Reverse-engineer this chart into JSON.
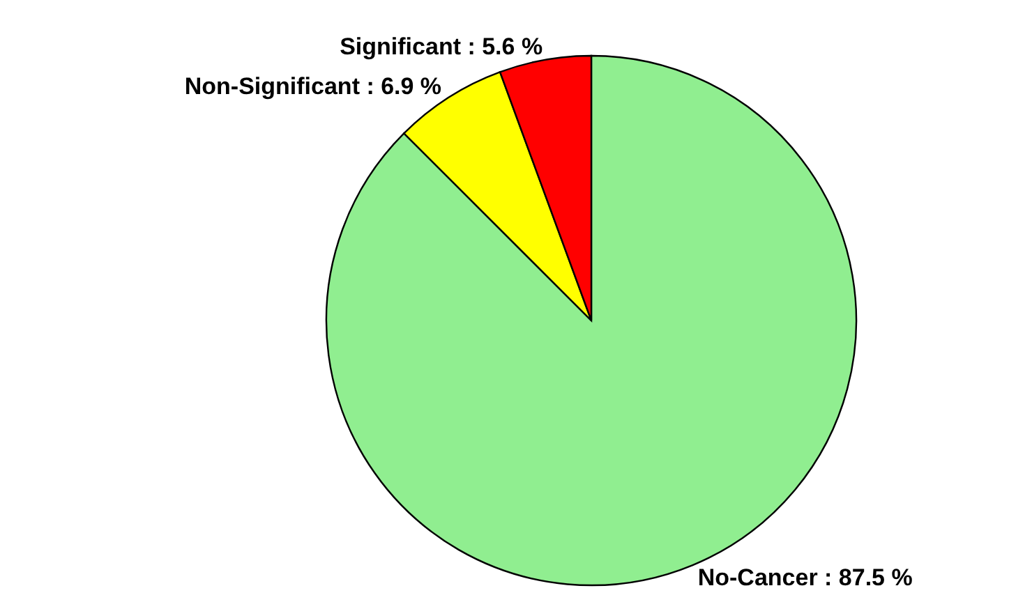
{
  "chart_data": {
    "type": "pie",
    "categories": [
      "No-Cancer",
      "Non-Significant",
      "Significant"
    ],
    "values": [
      87.5,
      6.9,
      5.6
    ],
    "colors": [
      "#90ee90",
      "#ffff00",
      "#ff0000"
    ],
    "value_labels": [
      "87.5 %",
      "6.9 %",
      "5.6 %"
    ],
    "legend": false
  }
}
